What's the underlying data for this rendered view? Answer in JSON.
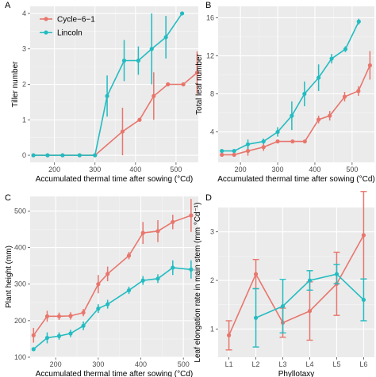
{
  "chart_data": [
    {
      "panel": "A",
      "type": "line",
      "xlabel": "Accumulated thermal time after sowing (°Cd)",
      "ylabel": "Tiller number",
      "xlim": [
        140,
        555
      ],
      "ylim": [
        -0.2,
        4.2
      ],
      "xticks": [
        200,
        300,
        400,
        500
      ],
      "yticks": [
        0,
        1,
        2,
        3,
        4
      ],
      "grid": true,
      "legend": "top-left",
      "series": [
        {
          "name": "Cycle−6−1",
          "color": "#E8766D",
          "points": [
            {
              "x": 148,
              "y": 0,
              "err": 0
            },
            {
              "x": 183,
              "y": 0,
              "err": 0
            },
            {
              "x": 220,
              "y": 0,
              "err": 0
            },
            {
              "x": 262,
              "y": 0,
              "err": 0
            },
            {
              "x": 300,
              "y": 0,
              "err": 0
            },
            {
              "x": 368,
              "y": 0.67,
              "err": 0.67
            },
            {
              "x": 410,
              "y": 1.0,
              "err": 0
            },
            {
              "x": 445,
              "y": 1.67,
              "err": 0.67
            },
            {
              "x": 480,
              "y": 2.0,
              "err": 0
            },
            {
              "x": 518,
              "y": 2.0,
              "err": 0
            },
            {
              "x": 552,
              "y": 2.33,
              "err": 0.6
            }
          ]
        },
        {
          "name": "Lincoln",
          "color": "#23BCC1",
          "points": [
            {
              "x": 148,
              "y": 0,
              "err": 0
            },
            {
              "x": 183,
              "y": 0,
              "err": 0
            },
            {
              "x": 220,
              "y": 0,
              "err": 0
            },
            {
              "x": 262,
              "y": 0,
              "err": 0
            },
            {
              "x": 300,
              "y": 0,
              "err": 0
            },
            {
              "x": 330,
              "y": 1.67,
              "err": 0.58
            },
            {
              "x": 372,
              "y": 2.67,
              "err": 0.58
            },
            {
              "x": 407,
              "y": 2.67,
              "err": 0.4
            },
            {
              "x": 440,
              "y": 3.0,
              "err": 1.0
            },
            {
              "x": 475,
              "y": 3.33,
              "err": 0.6
            },
            {
              "x": 515,
              "y": 4.0,
              "err": 0
            }
          ]
        }
      ]
    },
    {
      "panel": "B",
      "type": "line",
      "xlabel": "Accumulated thermal time after sowing (°Cd)",
      "ylabel": "Total leaf number",
      "xlim": [
        140,
        560
      ],
      "ylim": [
        0.8,
        17.2
      ],
      "xticks": [
        200,
        300,
        400,
        500
      ],
      "yticks": [
        4,
        8,
        12,
        16
      ],
      "grid": true,
      "series": [
        {
          "name": "Cycle−6−1",
          "color": "#E8766D",
          "points": [
            {
              "x": 150,
              "y": 1.6,
              "err": 0.2
            },
            {
              "x": 183,
              "y": 1.6,
              "err": 0.2
            },
            {
              "x": 220,
              "y": 2.0,
              "err": 0.5
            },
            {
              "x": 262,
              "y": 2.4,
              "err": 0.4
            },
            {
              "x": 300,
              "y": 3.0,
              "err": 0
            },
            {
              "x": 340,
              "y": 3.0,
              "err": 0
            },
            {
              "x": 373,
              "y": 3.0,
              "err": 0
            },
            {
              "x": 410,
              "y": 5.3,
              "err": 0.4
            },
            {
              "x": 440,
              "y": 5.7,
              "err": 0.5
            },
            {
              "x": 480,
              "y": 7.7,
              "err": 0.5
            },
            {
              "x": 517,
              "y": 8.3,
              "err": 0.5
            },
            {
              "x": 548,
              "y": 11.0,
              "err": 1.5
            }
          ]
        },
        {
          "name": "Lincoln",
          "color": "#23BCC1",
          "points": [
            {
              "x": 150,
              "y": 2.0,
              "err": 0.1
            },
            {
              "x": 183,
              "y": 2.0,
              "err": 0.1
            },
            {
              "x": 220,
              "y": 2.7,
              "err": 0.5
            },
            {
              "x": 262,
              "y": 3.0,
              "err": 0.3
            },
            {
              "x": 300,
              "y": 4.0,
              "err": 0.5
            },
            {
              "x": 338,
              "y": 5.7,
              "err": 1.5
            },
            {
              "x": 372,
              "y": 8.0,
              "err": 1.3
            },
            {
              "x": 410,
              "y": 9.7,
              "err": 1.4
            },
            {
              "x": 445,
              "y": 11.7,
              "err": 0.5
            },
            {
              "x": 482,
              "y": 12.7,
              "err": 0.3
            },
            {
              "x": 518,
              "y": 15.6,
              "err": 0.3
            }
          ]
        }
      ]
    },
    {
      "panel": "C",
      "type": "line",
      "xlabel": "Accumulated thermal time after sowing (°Cd)",
      "ylabel": "Plant height (mm)",
      "xlim": [
        140,
        535
      ],
      "ylim": [
        100,
        540
      ],
      "xticks": [
        200,
        300,
        400,
        500
      ],
      "yticks": [
        100,
        200,
        300,
        400,
        500
      ],
      "grid": true,
      "series": [
        {
          "name": "Cycle−6−1",
          "color": "#E8766D",
          "points": [
            {
              "x": 148,
              "y": 160,
              "err": 20
            },
            {
              "x": 180,
              "y": 212,
              "err": 15
            },
            {
              "x": 208,
              "y": 212,
              "err": 10
            },
            {
              "x": 235,
              "y": 213,
              "err": 10
            },
            {
              "x": 265,
              "y": 222,
              "err": 10
            },
            {
              "x": 300,
              "y": 300,
              "err": 25
            },
            {
              "x": 322,
              "y": 328,
              "err": 20
            },
            {
              "x": 372,
              "y": 378,
              "err": 10
            },
            {
              "x": 405,
              "y": 440,
              "err": 30
            },
            {
              "x": 440,
              "y": 445,
              "err": 30
            },
            {
              "x": 475,
              "y": 470,
              "err": 20
            },
            {
              "x": 518,
              "y": 488,
              "err": 45
            }
          ]
        },
        {
          "name": "Lincoln",
          "color": "#23BCC1",
          "points": [
            {
              "x": 148,
              "y": 122,
              "err": 0
            },
            {
              "x": 180,
              "y": 153,
              "err": 15
            },
            {
              "x": 208,
              "y": 158,
              "err": 10
            },
            {
              "x": 235,
              "y": 165,
              "err": 10
            },
            {
              "x": 265,
              "y": 186,
              "err": 12
            },
            {
              "x": 300,
              "y": 233,
              "err": 12
            },
            {
              "x": 322,
              "y": 245,
              "err": 12
            },
            {
              "x": 372,
              "y": 283,
              "err": 10
            },
            {
              "x": 405,
              "y": 310,
              "err": 12
            },
            {
              "x": 440,
              "y": 315,
              "err": 12
            },
            {
              "x": 475,
              "y": 345,
              "err": 20
            },
            {
              "x": 518,
              "y": 340,
              "err": 25
            }
          ]
        }
      ]
    },
    {
      "panel": "D",
      "type": "line",
      "xlabel": "Phyllotaxy",
      "ylabel": "Leaf elongation rate in main stem (mm °Cd⁻¹)",
      "categories": [
        "L1",
        "L2",
        "L3",
        "L4",
        "L5",
        "L6"
      ],
      "xlim": [
        0.6,
        6.4
      ],
      "ylim": [
        0.42,
        3.5
      ],
      "yticks": [
        1,
        2,
        3
      ],
      "grid": true,
      "series": [
        {
          "name": "Cycle−6−1",
          "color": "#E8766D",
          "points": [
            {
              "x": 1,
              "y": 0.87,
              "err": 0.3
            },
            {
              "x": 2,
              "y": 2.13,
              "err": 0.3
            },
            {
              "x": 3,
              "y": 1.13,
              "err": 0.3
            },
            {
              "x": 4,
              "y": 1.37,
              "err": 0.6
            },
            {
              "x": 5,
              "y": 1.93,
              "err": 0.65
            },
            {
              "x": 6,
              "y": 2.93,
              "err": 0.9
            }
          ]
        },
        {
          "name": "Lincoln",
          "color": "#23BCC1",
          "points": [
            {
              "x": 2,
              "y": 1.23,
              "err": 0.6
            },
            {
              "x": 3,
              "y": 1.47,
              "err": 0.55
            },
            {
              "x": 4,
              "y": 2.0,
              "err": 0.2
            },
            {
              "x": 5,
              "y": 2.13,
              "err": 0.2
            },
            {
              "x": 6,
              "y": 1.6,
              "err": 0.43
            }
          ]
        }
      ]
    }
  ]
}
